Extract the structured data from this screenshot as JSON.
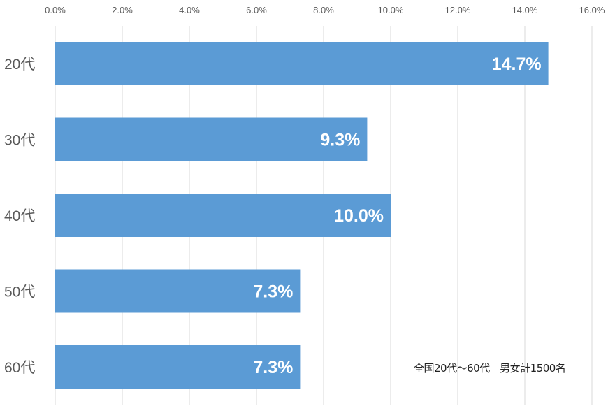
{
  "chart_data": {
    "type": "bar",
    "orientation": "horizontal",
    "categories": [
      "20代",
      "30代",
      "40代",
      "50代",
      "60代"
    ],
    "values": [
      14.7,
      9.3,
      10.0,
      7.3,
      7.3
    ],
    "data_labels": [
      "14.7%",
      "9.3%",
      "10.0%",
      "7.3%",
      "7.3%"
    ],
    "xlim": [
      0,
      16
    ],
    "xticks": [
      0,
      2,
      4,
      6,
      8,
      10,
      12,
      14,
      16
    ],
    "xtick_labels": [
      "0.0%",
      "2.0%",
      "4.0%",
      "6.0%",
      "8.0%",
      "10.0%",
      "12.0%",
      "14.0%",
      "16.0%"
    ],
    "x_axis_position": "top",
    "grid": true,
    "bar_color": "#5B9BD5",
    "annotation": "全国20代～60代　男女計1500名"
  }
}
